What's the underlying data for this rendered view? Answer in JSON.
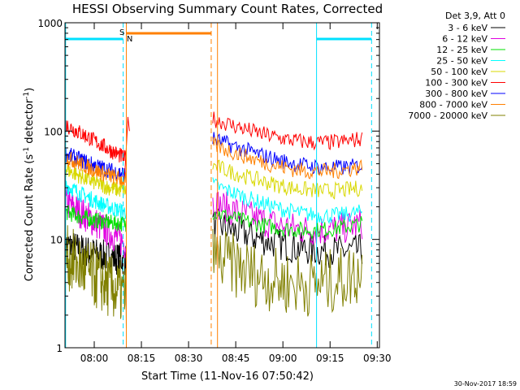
{
  "chart_data": {
    "type": "line",
    "title": "HESSI Observing Summary Count Rates, Corrected",
    "xlabel": "Start Time (11-Nov-16 07:50:42)",
    "ylabel": "Corrected Count Rate (s⁻¹ detector⁻¹)",
    "ylabel_main": "Corrected Count Rate (s",
    "ylabel_sup1": "-1",
    "ylabel_mid": " detector",
    "ylabel_sup2": "-1",
    "ylabel_end": ")",
    "yscale": "log",
    "ylim": [
      1,
      1000
    ],
    "xlim_minutes": [
      0,
      100
    ],
    "x_ticks": [
      {
        "label": "08:00",
        "minute": 9.3
      },
      {
        "label": "08:15",
        "minute": 24.3
      },
      {
        "label": "08:30",
        "minute": 39.3
      },
      {
        "label": "08:45",
        "minute": 54.3
      },
      {
        "label": "09:00",
        "minute": 69.3
      },
      {
        "label": "09:15",
        "minute": 84.3
      },
      {
        "label": "09:30",
        "minute": 99.3
      }
    ],
    "y_ticks": [
      {
        "label": "1",
        "value": 1
      },
      {
        "label": "10",
        "value": 10
      },
      {
        "label": "100",
        "value": 100
      },
      {
        "label": "1000",
        "value": 1000
      }
    ],
    "legend": {
      "header": "Det 3,9, Att 0",
      "placement": "right"
    },
    "series": [
      {
        "name": "3 - 6 keV",
        "color": "#000000",
        "seg1": [
          9,
          7,
          6.5
        ],
        "seg2": [
          14,
          6.5,
          8
        ]
      },
      {
        "name": "6 - 12 keV",
        "color": "#e000e0",
        "seg1": [
          22,
          13,
          9
        ],
        "seg2": [
          22,
          8,
          14
        ]
      },
      {
        "name": "12 - 25 keV",
        "color": "#00e000",
        "seg1": [
          18,
          14,
          14
        ],
        "seg2": [
          18,
          9,
          14
        ]
      },
      {
        "name": "25 - 50 keV",
        "color": "#00ffff",
        "seg1": [
          32,
          20,
          18
        ],
        "seg2": [
          32,
          12,
          18
        ]
      },
      {
        "name": "50 - 100 keV",
        "color": "#d8d800",
        "seg1": [
          45,
          30,
          28
        ],
        "seg2": [
          48,
          22,
          30
        ]
      },
      {
        "name": "100 - 300 keV",
        "color": "#ff0000",
        "seg1": [
          115,
          75,
          55
        ],
        "seg2": [
          130,
          60,
          85
        ]
      },
      {
        "name": "300 - 800 keV",
        "color": "#0000ff",
        "seg1": [
          62,
          45,
          40
        ],
        "seg2": [
          85,
          37,
          48
        ]
      },
      {
        "name": "800 - 7000 keV",
        "color": "#ff8000",
        "seg1": [
          58,
          40,
          35
        ],
        "seg2": [
          75,
          30,
          47
        ]
      },
      {
        "name": "7000 - 20000 keV",
        "color": "#808000",
        "seg1": [
          7,
          4,
          3
        ],
        "seg2": [
          7,
          2,
          5
        ]
      }
    ],
    "segment_minutes": {
      "seg1": [
        0,
        19.5
      ],
      "seg2": [
        47,
        94.5
      ]
    },
    "spike_minutes": 20
  },
  "annotations": {
    "saa_label": "S",
    "night_label": "N",
    "date_stamp": "30-Nov-2017 18:59"
  },
  "colors": {
    "cyan_marker": "#00e0ff",
    "orange_marker": "#ff8000"
  }
}
